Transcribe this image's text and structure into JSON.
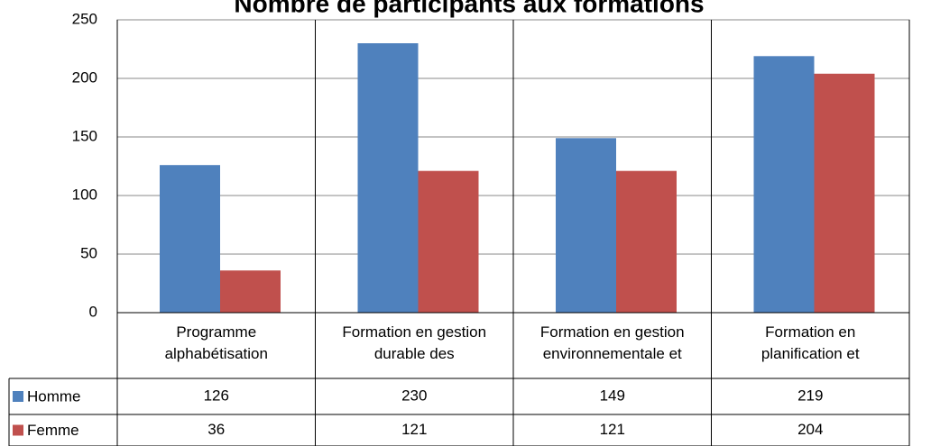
{
  "chart_data": {
    "type": "bar",
    "title": "Nombre de participants aux formations",
    "categories": [
      "Programme\nalphabétisation",
      "Formation en gestion\ndurable des",
      "Formation en gestion\nenvironnementale et",
      "Formation en\nplanification et"
    ],
    "series": [
      {
        "name": "Homme",
        "color": "#4f81bd",
        "values": [
          126,
          230,
          149,
          219
        ]
      },
      {
        "name": "Femme",
        "color": "#c0504d",
        "values": [
          36,
          121,
          121,
          204
        ]
      }
    ],
    "ylim": [
      0,
      250
    ],
    "yticks": [
      0,
      50,
      100,
      150,
      200,
      250
    ],
    "grid": true
  }
}
